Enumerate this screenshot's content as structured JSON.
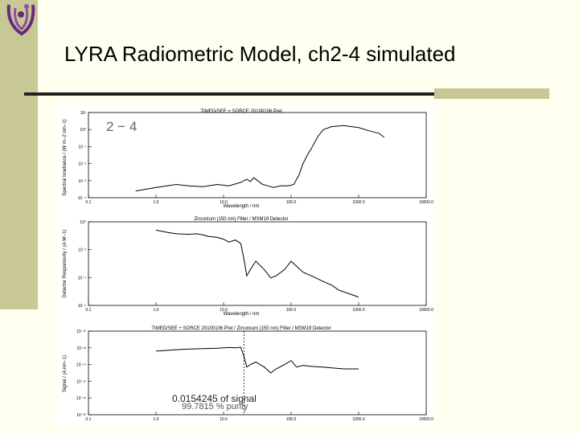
{
  "slide": {
    "title": "LYRA Radiometric Model, ch2-4 simulated",
    "accent_color": "#c8c896",
    "logo_icon": "lyra-swirl-logo"
  },
  "chart_data": [
    {
      "type": "line",
      "title": "TIMED/SEE + SORCE 20100106 Prel",
      "annotation": "2 − 4",
      "xlabel": "Wavelength / nm",
      "ylabel": "Spectral Irradiance / (W m−2 nm−1)",
      "x_scale": "log",
      "y_scale": "log",
      "xlim": [
        0.1,
        10000
      ],
      "ylim": [
        0.0001,
        10
      ],
      "x_ticks": [
        "0.1",
        "1.0",
        "10.0",
        "100.0",
        "1000.0",
        "10000.0"
      ],
      "y_ticks": [
        "10¹",
        "10⁰",
        "10⁻¹",
        "10⁻²",
        "10⁻³",
        "10⁻⁴"
      ],
      "series": [
        {
          "x": [
            0.5,
            1,
            2,
            3,
            5,
            8,
            12,
            18,
            22,
            25,
            28,
            32,
            38,
            45,
            55,
            70,
            90,
            110,
            120,
            130,
            150,
            180,
            200,
            250,
            300,
            400,
            600,
            1000,
            1500,
            2000,
            2400
          ],
          "y": [
            0.00025,
            0.0004,
            0.0006,
            0.0005,
            0.00045,
            0.0006,
            0.0005,
            0.0008,
            0.0012,
            0.0009,
            0.0015,
            0.001,
            0.0006,
            0.0005,
            0.0004,
            0.0005,
            0.0005,
            0.0006,
            0.0012,
            0.002,
            0.01,
            0.04,
            0.08,
            0.4,
            1.0,
            1.5,
            1.7,
            1.3,
            0.8,
            0.6,
            0.35
          ]
        }
      ]
    },
    {
      "type": "line",
      "title": "Zirconium (150 nm) Filter / MSM19 Detector",
      "xlabel": "Wavelength / nm",
      "ylabel": "Detector Responsivity / (A W−1)",
      "x_scale": "log",
      "y_scale": "log",
      "xlim": [
        0.1,
        10000
      ],
      "ylim": [
        1e-07,
        1
      ],
      "x_ticks": [
        "0.1",
        "1.0",
        "10.0",
        "100.0",
        "1000.0",
        "10000.0"
      ],
      "y_ticks": [
        "10⁰",
        "10⁻²",
        "10⁻⁴",
        "10⁻⁶"
      ],
      "series": [
        {
          "x": [
            1,
            1.5,
            2,
            3,
            4,
            5,
            6,
            8,
            10,
            12,
            15,
            18,
            20,
            22,
            25,
            30,
            40,
            50,
            60,
            80,
            100,
            150,
            200,
            300,
            400,
            500,
            700,
            1000
          ],
          "y": [
            0.2,
            0.13,
            0.1,
            0.09,
            0.1,
            0.08,
            0.06,
            0.05,
            0.035,
            0.02,
            0.03,
            0.015,
            0.0008,
            3e-05,
            0.0001,
            0.0005,
            0.0001,
            2e-05,
            3e-05,
            0.0001,
            0.0005,
            6e-05,
            3e-05,
            1e-05,
            5e-06,
            2e-06,
            1e-06,
            5e-07
          ]
        }
      ]
    },
    {
      "type": "line",
      "title": "TIMED/SEE + SORCE 20100106 Prel / Zirconium (150 nm) Filter / MSM19 Detector",
      "xlabel": "Wavelength / nm",
      "ylabel": "Signal / (A nm−1)",
      "x_scale": "log",
      "y_scale": "log",
      "xlim": [
        0.1,
        10000
      ],
      "ylim": [
        1e-20,
        1e-10
      ],
      "x_ticks": [
        "0.1",
        "1.0",
        "10.0",
        "100.0",
        "1000.0",
        "10000.0"
      ],
      "y_ticks": [
        "10⁻¹⁰",
        "10⁻¹²",
        "10⁻¹⁴",
        "10⁻¹⁶",
        "10⁻¹⁸",
        "10⁻²⁰"
      ],
      "marker_x": 20,
      "annotations": [
        "0.0154245 of signal",
        "99.7815 % purity"
      ],
      "series": [
        {
          "x": [
            1,
            1.5,
            2,
            3,
            5,
            8,
            12,
            15,
            18,
            20,
            22,
            25,
            30,
            40,
            50,
            60,
            80,
            100,
            120,
            150,
            200,
            300,
            400,
            600,
            1000
          ],
          "y": [
            4e-13,
            5e-13,
            6e-13,
            7e-13,
            8e-13,
            9e-13,
            1.1e-12,
            1e-12,
            1.2e-12,
            1e-13,
            5e-15,
            1e-14,
            2e-14,
            5e-15,
            1e-15,
            3e-15,
            1e-14,
            3e-14,
            5e-15,
            8e-15,
            6e-15,
            5e-15,
            4e-15,
            3e-15,
            3e-15
          ]
        }
      ]
    }
  ]
}
